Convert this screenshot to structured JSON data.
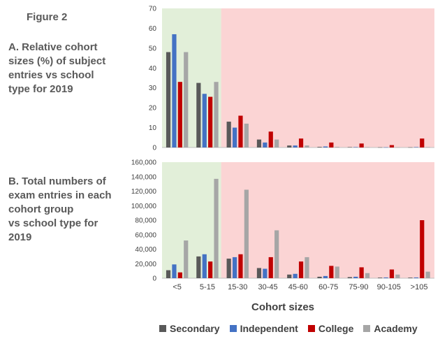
{
  "figure_title": "Figure 2",
  "panel_a_description": "A. Relative cohort\nsizes (%) of subject\nentries vs school\ntype for 2019",
  "panel_b_description": "B. Total numbers of\nexam entries in each\ncohort group\nvs school type for\n2019",
  "x_axis_label": "Cohort sizes",
  "colors": {
    "Secondary": "#595959",
    "Independent": "#4472c4",
    "College": "#c00000",
    "Academy": "#a6a6a6",
    "green_band": "#e2efd9",
    "red_band": "#fbd4d4"
  },
  "legend": [
    "Secondary",
    "Independent",
    "College",
    "Academy"
  ],
  "chart_data": [
    {
      "type": "bar",
      "title": "Relative cohort sizes (%) of subject entries vs school type for 2019",
      "categories": [
        "<5",
        "5-15",
        "15-30",
        "30-45",
        "45-60",
        "60-75",
        "75-90",
        "90-105",
        ">105"
      ],
      "ylim": [
        0,
        70
      ],
      "yticks": [
        0,
        10,
        20,
        30,
        40,
        50,
        60,
        70
      ],
      "ytick_labels": [
        "0",
        "10",
        "20",
        "30",
        "40",
        "50",
        "60",
        "70"
      ],
      "series": [
        {
          "name": "Secondary",
          "values": [
            48,
            32.5,
            13,
            4,
            1,
            0.3,
            0.2,
            0.1,
            0.1
          ]
        },
        {
          "name": "Independent",
          "values": [
            57,
            27,
            10,
            2.5,
            1,
            0.5,
            0.2,
            0.1,
            0.2
          ]
        },
        {
          "name": "College",
          "values": [
            33,
            25.5,
            16,
            8,
            4.5,
            2.5,
            2,
            1.2,
            4.5
          ]
        },
        {
          "name": "Academy",
          "values": [
            48,
            33,
            12,
            4,
            1,
            0.3,
            0.2,
            0.1,
            0.2
          ]
        }
      ]
    },
    {
      "type": "bar",
      "title": "Total numbers of exam entries in each cohort group vs school type for 2019",
      "categories": [
        "<5",
        "5-15",
        "15-30",
        "30-45",
        "45-60",
        "60-75",
        "75-90",
        "90-105",
        ">105"
      ],
      "xlabel": "Cohort sizes",
      "ylim": [
        0,
        160000
      ],
      "yticks": [
        0,
        20000,
        40000,
        60000,
        80000,
        100000,
        120000,
        140000,
        160000
      ],
      "ytick_labels": [
        "0",
        "20,000",
        "40,000",
        "60,000",
        "80,000",
        "100,000",
        "120,000",
        "140,000",
        "160,000"
      ],
      "series": [
        {
          "name": "Secondary",
          "values": [
            11000,
            30000,
            27000,
            14000,
            5000,
            2000,
            1500,
            800,
            800
          ]
        },
        {
          "name": "Independent",
          "values": [
            19000,
            33000,
            29000,
            13000,
            6000,
            3000,
            2000,
            1000,
            1000
          ]
        },
        {
          "name": "College",
          "values": [
            8000,
            23000,
            33000,
            29000,
            23000,
            17000,
            15000,
            12000,
            80000
          ]
        },
        {
          "name": "Academy",
          "values": [
            52000,
            137000,
            122000,
            66000,
            29000,
            16000,
            7000,
            5000,
            9000
          ]
        }
      ]
    }
  ]
}
